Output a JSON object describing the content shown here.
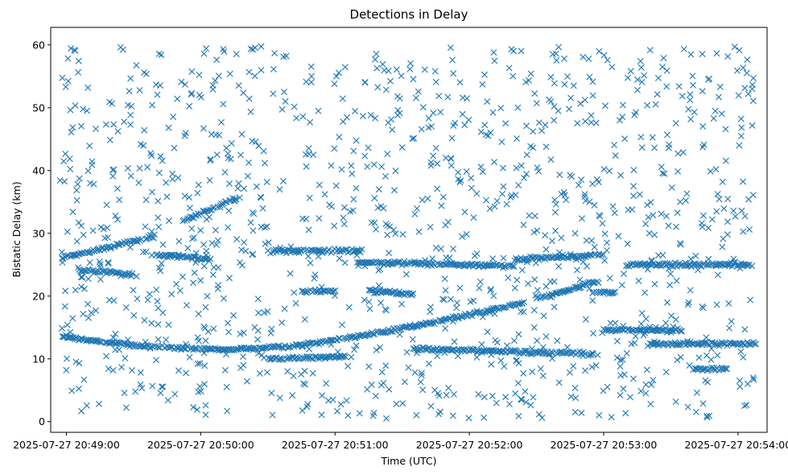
{
  "chart_data": {
    "type": "scatter",
    "title": "Detections in Delay",
    "xlabel": "Time (UTC)",
    "ylabel": "Bistatic Delay (km)",
    "marker": "x",
    "color": "#1f77b4",
    "grid": false,
    "x_ticks": [
      "2025-07-27 20:49:00",
      "2025-07-27 20:50:00",
      "2025-07-27 20:51:00",
      "2025-07-27 20:52:00",
      "2025-07-27 20:53:00",
      "2025-07-27 20:54:00"
    ],
    "y_ticks": [
      0,
      10,
      20,
      30,
      40,
      50,
      60
    ],
    "xlim": [
      "2025-07-27 20:48:53",
      "2025-07-27 20:54:13"
    ],
    "ylim": [
      -1.7,
      62.8
    ],
    "tracks": [
      {
        "start": "2025-07-27 20:48:57",
        "end": "2025-07-27 20:49:09",
        "delay_start": 13.6,
        "delay_end": 13.0
      },
      {
        "start": "2025-07-27 20:49:09",
        "end": "2025-07-27 20:49:35",
        "delay_start": 13.0,
        "delay_end": 12.0
      },
      {
        "start": "2025-07-27 20:49:35",
        "end": "2025-07-27 20:50:10",
        "delay_start": 12.0,
        "delay_end": 11.4
      },
      {
        "start": "2025-07-27 20:50:10",
        "end": "2025-07-27 20:50:40",
        "delay_start": 11.4,
        "delay_end": 12.0
      },
      {
        "start": "2025-07-27 20:50:40",
        "end": "2025-07-27 20:51:20",
        "delay_start": 12.0,
        "delay_end": 14.2
      },
      {
        "start": "2025-07-27 20:51:20",
        "end": "2025-07-27 20:52:00",
        "delay_start": 14.2,
        "delay_end": 17.0
      },
      {
        "start": "2025-07-27 20:52:00",
        "end": "2025-07-27 20:52:25",
        "delay_start": 17.0,
        "delay_end": 19.0
      },
      {
        "start": "2025-07-27 20:52:30",
        "end": "2025-07-27 20:52:58",
        "delay_start": 19.6,
        "delay_end": 22.4
      },
      {
        "start": "2025-07-27 20:48:58",
        "end": "2025-07-27 20:49:40",
        "delay_start": 26.0,
        "delay_end": 29.6
      },
      {
        "start": "2025-07-27 20:49:40",
        "end": "2025-07-27 20:50:05",
        "delay_start": 26.6,
        "delay_end": 25.8
      },
      {
        "start": "2025-07-27 20:49:52",
        "end": "2025-07-27 20:50:18",
        "delay_start": 32.0,
        "delay_end": 36.0
      },
      {
        "start": "2025-07-27 20:50:30",
        "end": "2025-07-27 20:51:12",
        "delay_start": 27.2,
        "delay_end": 27.2
      },
      {
        "start": "2025-07-27 20:51:10",
        "end": "2025-07-27 20:52:20",
        "delay_start": 25.4,
        "delay_end": 24.8
      },
      {
        "start": "2025-07-27 20:52:20",
        "end": "2025-07-27 20:53:00",
        "delay_start": 25.8,
        "delay_end": 26.6
      },
      {
        "start": "2025-07-27 20:53:10",
        "end": "2025-07-27 20:54:05",
        "delay_start": 25.0,
        "delay_end": 25.0
      },
      {
        "start": "2025-07-27 20:51:35",
        "end": "2025-07-27 20:52:55",
        "delay_start": 11.6,
        "delay_end": 10.8
      },
      {
        "start": "2025-07-27 20:53:00",
        "end": "2025-07-27 20:53:35",
        "delay_start": 14.6,
        "delay_end": 14.6
      },
      {
        "start": "2025-07-27 20:53:20",
        "end": "2025-07-27 20:54:08",
        "delay_start": 12.4,
        "delay_end": 12.4
      },
      {
        "start": "2025-07-27 20:50:30",
        "end": "2025-07-27 20:51:05",
        "delay_start": 10.0,
        "delay_end": 10.4
      },
      {
        "start": "2025-07-27 20:49:05",
        "end": "2025-07-27 20:49:30",
        "delay_start": 24.2,
        "delay_end": 23.4
      },
      {
        "start": "2025-07-27 20:50:45",
        "end": "2025-07-27 20:51:00",
        "delay_start": 20.8,
        "delay_end": 20.8
      },
      {
        "start": "2025-07-27 20:51:15",
        "end": "2025-07-27 20:51:35",
        "delay_start": 20.8,
        "delay_end": 20.4
      },
      {
        "start": "2025-07-27 20:53:40",
        "end": "2025-07-27 20:53:55",
        "delay_start": 8.4,
        "delay_end": 8.4
      },
      {
        "start": "2025-07-27 20:52:55",
        "end": "2025-07-27 20:53:05",
        "delay_start": 20.6,
        "delay_end": 20.6
      }
    ],
    "scattered_points": {
      "x_range": [
        "2025-07-27 20:48:57",
        "2025-07-27 20:54:07"
      ],
      "y_range": [
        0.5,
        59.8
      ],
      "approx_count": 1200
    }
  }
}
